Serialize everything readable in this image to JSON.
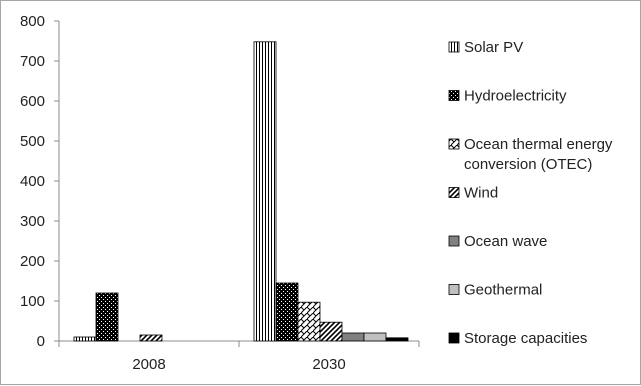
{
  "chart_data": {
    "type": "bar",
    "title": "",
    "xlabel": "",
    "ylabel": "",
    "categories": [
      "2008",
      "2030"
    ],
    "ylim": [
      0,
      800
    ],
    "yticks": [
      0,
      100,
      200,
      300,
      400,
      500,
      600,
      700,
      800
    ],
    "grid": false,
    "legend_position": "right",
    "series": [
      {
        "name": "Solar PV",
        "values": [
          10,
          748
        ],
        "pattern": "vertical-lines",
        "color": "#000000"
      },
      {
        "name": "Hydroelectricity",
        "values": [
          120,
          145
        ],
        "pattern": "black-with-white-dots",
        "color": "#000000"
      },
      {
        "name": "Ocean thermal energy conversion (OTEC)",
        "legend_lines": [
          "Ocean thermal energy",
          "conversion (OTEC)"
        ],
        "values": [
          0,
          97
        ],
        "pattern": "diagonal-weave",
        "color": "#000000"
      },
      {
        "name": "Wind",
        "values": [
          15,
          47
        ],
        "pattern": "diagonal-lines",
        "color": "#000000"
      },
      {
        "name": "Ocean wave",
        "values": [
          0,
          20
        ],
        "pattern": "solid",
        "color": "#808080"
      },
      {
        "name": "Geothermal",
        "values": [
          0,
          20
        ],
        "pattern": "solid",
        "color": "#c0c0c0"
      },
      {
        "name": "Storage capacities",
        "values": [
          0,
          8
        ],
        "pattern": "solid",
        "color": "#000000"
      }
    ]
  }
}
